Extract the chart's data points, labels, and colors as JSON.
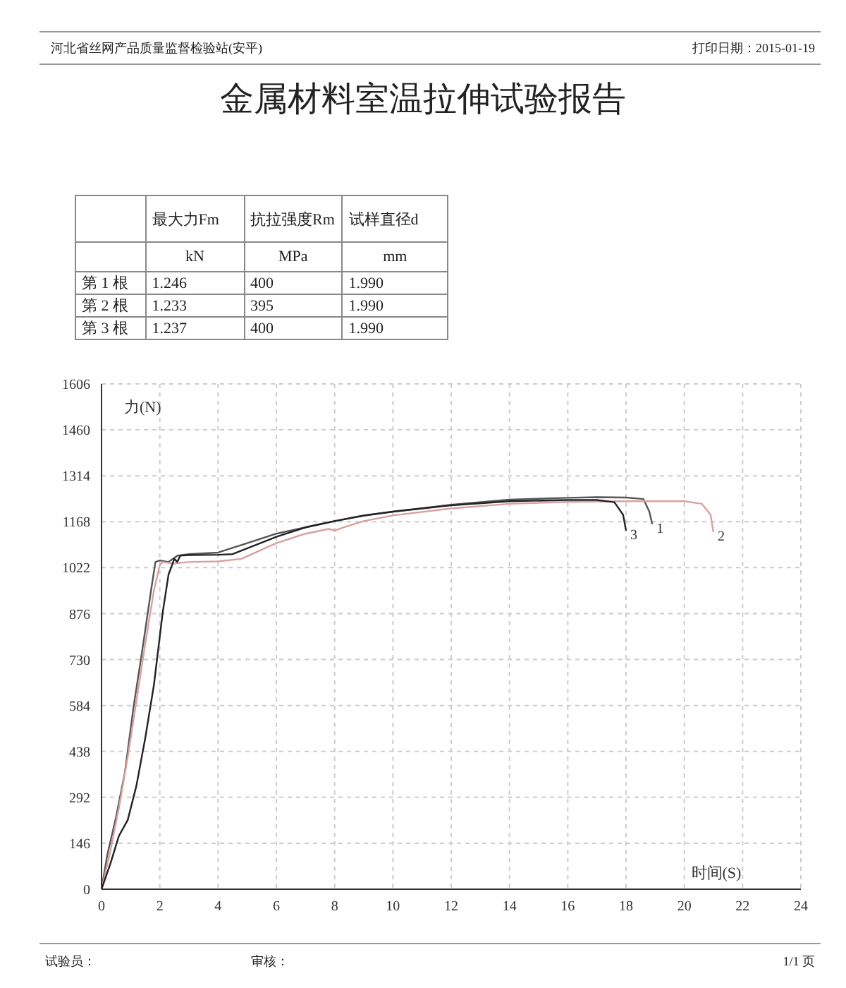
{
  "chart_data": {
    "type": "line",
    "title": "金属材料室温拉伸试验报告",
    "ylabel": "力(N)",
    "xlabel": "时间(S)",
    "annotations": [
      "河北省丝网产品质量监督检验站(安平)",
      "打印日期：2015-01-19",
      "最大力Fm",
      "抗拉强度Rm",
      "试样直径d",
      "kN",
      "MPa",
      "mm",
      "第 1 根",
      "1.246",
      "400",
      "1.990",
      "第 2 根",
      "1.233",
      "395",
      "1.990",
      "第 3 根",
      "1.237",
      "400",
      "1.990",
      "试验员：",
      "审核：",
      "1/1 页"
    ],
    "xlim": [
      0,
      24
    ],
    "xticks": [
      0,
      2,
      4,
      6,
      8,
      10,
      12,
      14,
      16,
      18,
      20,
      22,
      24
    ],
    "ylim": [
      0,
      1606
    ],
    "yticks": [
      0,
      146,
      292,
      438,
      584,
      730,
      876,
      1022,
      1168,
      1314,
      1460,
      1606
    ],
    "grid": true,
    "legend": false,
    "marker": "none",
    "line_style": "solid",
    "series": [
      {
        "name": "1",
        "color": "#555555",
        "x": [
          0,
          0.2,
          0.5,
          0.8,
          1.1,
          1.4,
          1.7,
          1.85,
          2.0,
          2.3,
          2.6,
          3,
          4,
          5,
          6,
          7,
          8,
          9,
          10,
          12,
          14,
          16,
          17,
          18,
          18.6,
          18.8,
          18.9
        ],
        "values": [
          0,
          110,
          230,
          370,
          580,
          760,
          950,
          1040,
          1045,
          1040,
          1060,
          1065,
          1070,
          1100,
          1130,
          1150,
          1170,
          1187,
          1200,
          1222,
          1238,
          1244,
          1246,
          1245,
          1240,
          1200,
          1160
        ]
      },
      {
        "name": "2",
        "color": "#d9a0a0",
        "x": [
          0,
          0.3,
          0.6,
          0.9,
          1.2,
          1.5,
          1.8,
          2.0,
          2.1,
          2.5,
          3,
          4,
          4.8,
          6,
          7,
          7.8,
          8,
          8.3,
          9,
          10,
          12,
          14,
          16,
          18,
          20,
          20.6,
          20.9,
          21.0
        ],
        "values": [
          0,
          120,
          260,
          420,
          600,
          780,
          950,
          1030,
          1040,
          1035,
          1040,
          1042,
          1050,
          1100,
          1130,
          1145,
          1140,
          1150,
          1170,
          1188,
          1210,
          1225,
          1231,
          1233,
          1233,
          1225,
          1190,
          1135
        ]
      },
      {
        "name": "3",
        "color": "#222222",
        "x": [
          0,
          0.3,
          0.6,
          0.9,
          1.2,
          1.5,
          1.8,
          2.1,
          2.3,
          2.5,
          2.6,
          2.7,
          3,
          4,
          4.5,
          6,
          7,
          8,
          9,
          10,
          12,
          14,
          16,
          17,
          17.6,
          17.9,
          18.0
        ],
        "values": [
          0,
          80,
          170,
          220,
          330,
          480,
          650,
          880,
          1000,
          1050,
          1040,
          1060,
          1062,
          1063,
          1065,
          1120,
          1150,
          1170,
          1188,
          1200,
          1220,
          1233,
          1237,
          1237,
          1230,
          1190,
          1140
        ]
      }
    ]
  }
}
